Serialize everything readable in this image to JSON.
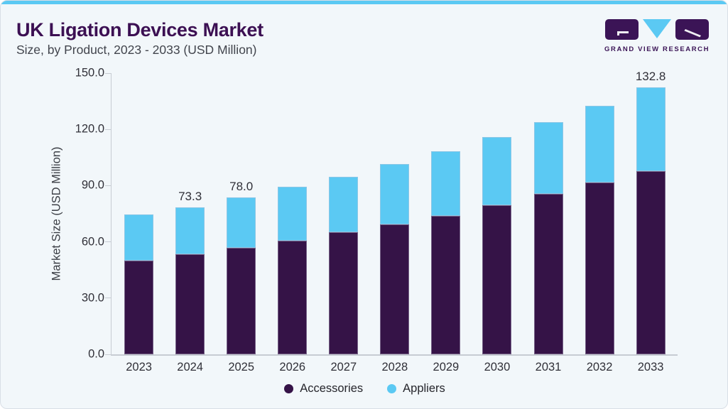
{
  "page": {
    "background_color": "#f2f7fa",
    "accent_bar_color": "#5bc9f3"
  },
  "header": {
    "title": "UK Ligation Devices Market",
    "subtitle": "Size, by Product, 2023 - 2033 (USD Million)",
    "logo": {
      "text": "GRAND VIEW RESEARCH",
      "purple": "#3b1456",
      "blue": "#5bc9f3"
    }
  },
  "chart_data": {
    "type": "bar",
    "stacked": true,
    "title": "UK Ligation Devices Market",
    "subtitle": "Size, by Product, 2023 - 2033 (USD Million)",
    "ylabel": "Market Size (USD Million)",
    "xlabel": "",
    "categories": [
      "2023",
      "2024",
      "2025",
      "2026",
      "2027",
      "2028",
      "2029",
      "2030",
      "2031",
      "2032",
      "2033"
    ],
    "series": [
      {
        "name": "Accessories",
        "color": "#351347",
        "values": [
          46.6,
          49.9,
          53.1,
          56.7,
          60.7,
          64.5,
          68.9,
          74.3,
          79.8,
          85.4,
          91.2
        ]
      },
      {
        "name": "Appliers",
        "color": "#5bc9f3",
        "values": [
          22.9,
          23.4,
          24.9,
          26.6,
          27.8,
          30.2,
          32.3,
          33.8,
          35.8,
          38.3,
          41.6
        ]
      }
    ],
    "totals": [
      69.5,
      73.3,
      78.0,
      83.3,
      88.5,
      94.7,
      101.2,
      108.1,
      115.6,
      123.7,
      132.8
    ],
    "bar_value_labels": [
      "",
      "73.3",
      "78.0",
      "",
      "",
      "",
      "",
      "",
      "",
      "",
      "132.8"
    ],
    "yticks": [
      {
        "value": 0,
        "label": "0.0"
      },
      {
        "value": 30,
        "label": "30.0"
      },
      {
        "value": 60,
        "label": "60.0"
      },
      {
        "value": 90,
        "label": "90.0"
      },
      {
        "value": 120,
        "label": "120.0"
      },
      {
        "value": 150,
        "label": "150.0"
      }
    ],
    "ylim": [
      0,
      150
    ],
    "grid": false,
    "legend_position": "bottom"
  }
}
